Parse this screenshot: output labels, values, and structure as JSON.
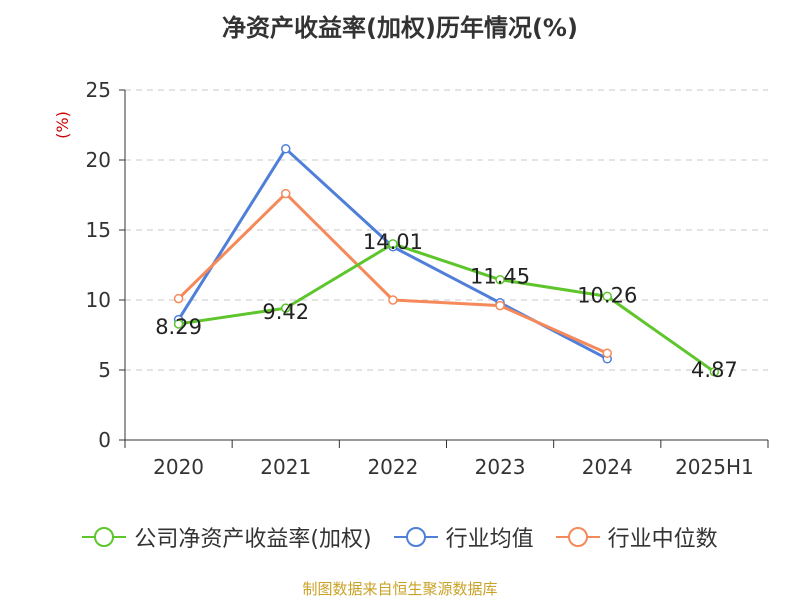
{
  "page": {
    "title": "净资产收益率(加权)历年情况(%)",
    "source": "制图数据来自恒生聚源数据库"
  },
  "chart_data": {
    "type": "line",
    "title": "净资产收益率(加权)历年情况(%)",
    "xlabel": "",
    "ylabel": "(%)",
    "categories": [
      "2020",
      "2021",
      "2022",
      "2023",
      "2024",
      "2025H1"
    ],
    "ylim": [
      0,
      25
    ],
    "yticks": [
      0,
      5,
      10,
      15,
      20,
      25
    ],
    "grid": true,
    "legend_position": "bottom",
    "series": [
      {
        "name": "公司净资产收益率(加权)",
        "color": "#5ec52d",
        "values": [
          8.29,
          9.42,
          14.01,
          11.45,
          10.26,
          4.87
        ],
        "labels": [
          "8.29",
          "9.42",
          "14.01",
          "11.45",
          "10.26",
          "4.87"
        ]
      },
      {
        "name": "行业均值",
        "color": "#4f7fd8",
        "values": [
          8.6,
          20.8,
          13.8,
          9.8,
          5.8,
          null
        ]
      },
      {
        "name": "行业中位数",
        "color": "#f5895a",
        "values": [
          10.1,
          17.6,
          10.0,
          9.6,
          6.2,
          null
        ]
      }
    ]
  }
}
